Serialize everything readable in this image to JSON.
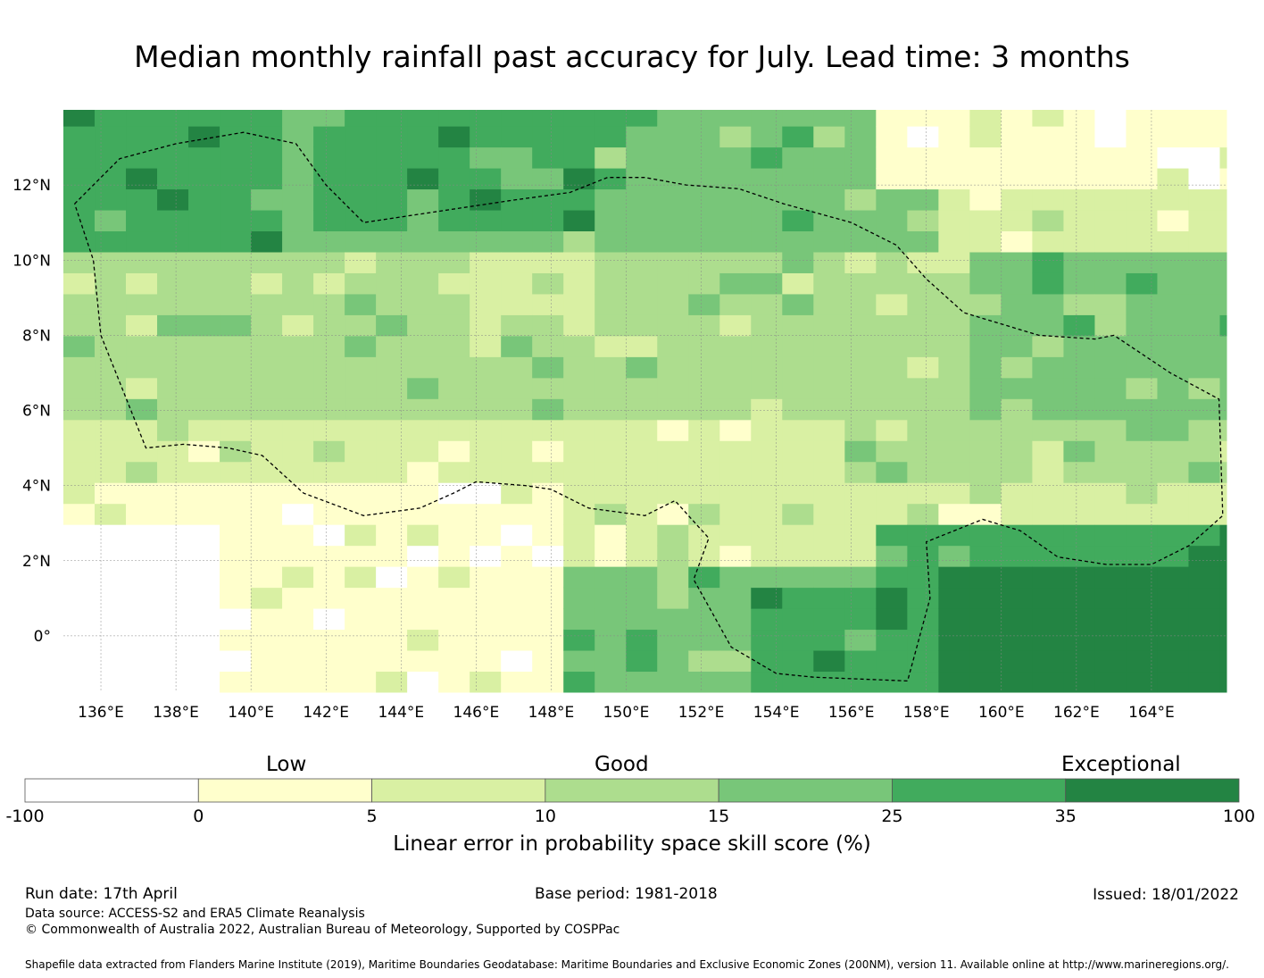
{
  "title": "Median monthly rainfall past accuracy for July. Lead time: 3 months",
  "map": {
    "lon_range": [
      135,
      166
    ],
    "lat_range": [
      -1.5,
      14
    ],
    "x_ticks": [
      "136°E",
      "138°E",
      "140°E",
      "142°E",
      "144°E",
      "146°E",
      "148°E",
      "150°E",
      "152°E",
      "154°E",
      "156°E",
      "158°E",
      "160°E",
      "162°E",
      "164°E"
    ],
    "x_tick_values": [
      136,
      138,
      140,
      142,
      144,
      146,
      148,
      150,
      152,
      154,
      156,
      158,
      160,
      162,
      164
    ],
    "y_ticks": [
      "12°N",
      "10°N",
      "8°N",
      "6°N",
      "4°N",
      "2°N",
      "0°"
    ],
    "y_tick_values": [
      12,
      10,
      8,
      6,
      4,
      2,
      0
    ]
  },
  "colorbar": {
    "title": "Linear error in probability space skill score (%)",
    "category_labels": [
      "Low",
      "Good",
      "Exceptional"
    ],
    "tick_labels": [
      "-100",
      "0",
      "5",
      "10",
      "15",
      "25",
      "35",
      "100"
    ],
    "colors": [
      "#ffffff",
      "#ffffcc",
      "#d9f0a3",
      "#addd8e",
      "#78c679",
      "#41ab5d",
      "#238443"
    ]
  },
  "footer": {
    "run_date": "Run date: 17th April",
    "base_period": "Base period: 1981-2018",
    "issued": "Issued: 18/01/2022",
    "data_source": "Data source: ACCESS-S2 and ERA5 Climate Reanalysis",
    "copyright": "© Commonwealth of Australia 2022, Australian Bureau of Meteorology, Supported by COSPPac",
    "shapefile": "Shapefile data extracted from Flanders Marine Institute (2019), Maritime Boundaries Geodatabase: Maritime Boundaries and Exclusive Economic Zones (200NM), version 11. Available online at http://www.marineregions.org/."
  }
}
